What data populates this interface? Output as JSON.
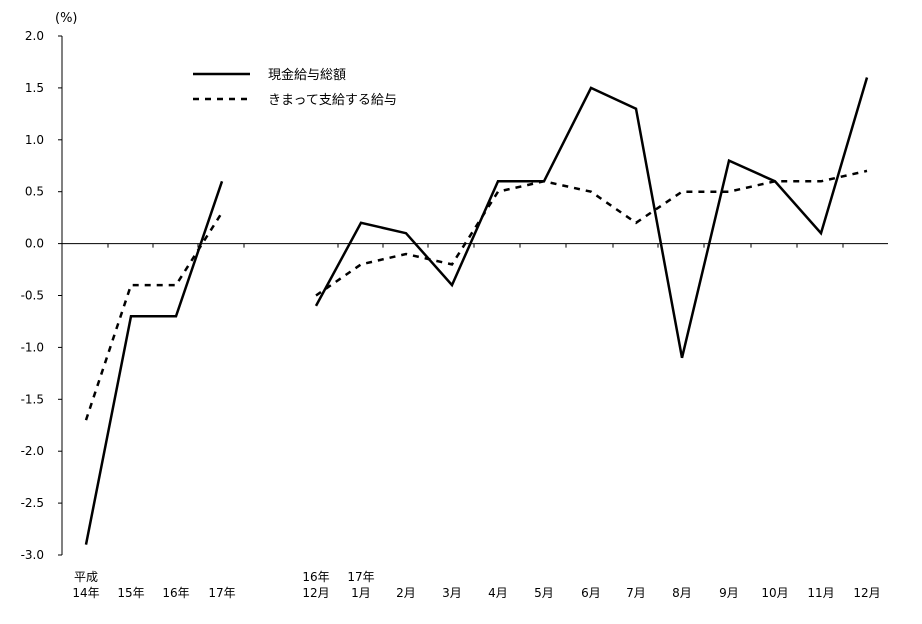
{
  "chart_data": {
    "type": "line",
    "unit_label": "(%)",
    "ylim": [
      -3.0,
      2.0
    ],
    "yticks": [
      "2.0",
      "1.5",
      "1.0",
      "0.5",
      "0.0",
      "-0.5",
      "-1.0",
      "-1.5",
      "-2.0",
      "-2.5",
      "-3.0"
    ],
    "groups": [
      {
        "categories": [
          {
            "line1": "平成",
            "line2": "14年"
          },
          {
            "line1": "",
            "line2": "15年"
          },
          {
            "line1": "",
            "line2": "16年"
          },
          {
            "line1": "",
            "line2": "17年"
          }
        ],
        "series_values": [
          [
            -2.9,
            -0.7,
            -0.7,
            0.6
          ],
          [
            -1.7,
            -0.4,
            -0.4,
            0.3
          ]
        ]
      },
      {
        "categories": [
          {
            "line1": "16年",
            "line2": "12月"
          },
          {
            "line1": "17年",
            "line2": "1月"
          },
          {
            "line1": "",
            "line2": "2月"
          },
          {
            "line1": "",
            "line2": "3月"
          },
          {
            "line1": "",
            "line2": "4月"
          },
          {
            "line1": "",
            "line2": "5月"
          },
          {
            "line1": "",
            "line2": "6月"
          },
          {
            "line1": "",
            "line2": "7月"
          },
          {
            "line1": "",
            "line2": "8月"
          },
          {
            "line1": "",
            "line2": "9月"
          },
          {
            "line1": "",
            "line2": "10月"
          },
          {
            "line1": "",
            "line2": "11月"
          },
          {
            "line1": "",
            "line2": "12月"
          }
        ],
        "series_values": [
          [
            -0.6,
            0.2,
            0.1,
            -0.4,
            0.6,
            0.6,
            1.5,
            1.3,
            -1.1,
            0.8,
            0.6,
            0.1,
            1.6
          ],
          [
            -0.5,
            -0.2,
            -0.1,
            -0.2,
            0.5,
            0.6,
            0.5,
            0.2,
            0.5,
            0.5,
            0.6,
            0.6,
            0.7
          ]
        ]
      }
    ],
    "series": [
      {
        "name": "現金給与総額",
        "style": "solid",
        "color": "#000000"
      },
      {
        "name": "きまって支給する給与",
        "style": "dashed",
        "color": "#000000"
      }
    ],
    "legend_position": "top-left",
    "grid": false
  }
}
